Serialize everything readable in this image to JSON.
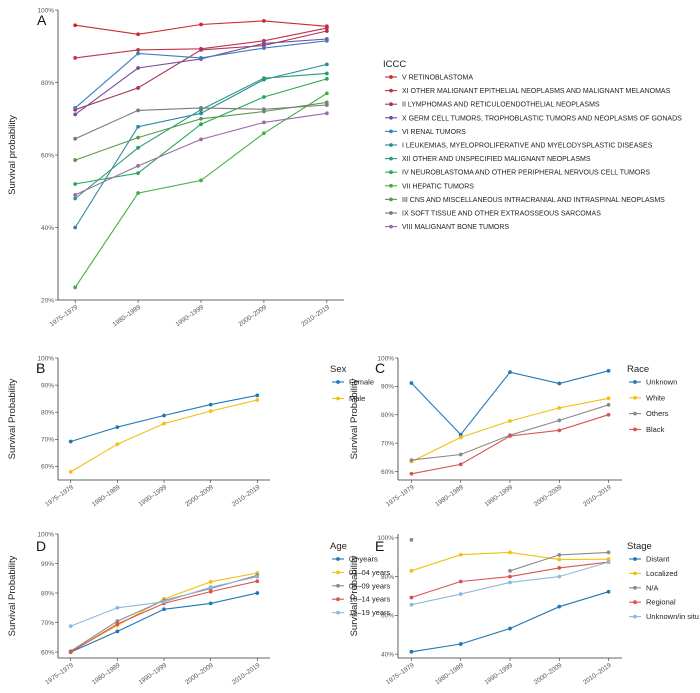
{
  "chart_data": [
    {
      "id": "A",
      "type": "line",
      "panel_label": "A",
      "ylabel": "Survival probability",
      "legend_title": "ICCC",
      "categories": [
        "1975–1979",
        "1980–1989",
        "1990–1999",
        "2000–2009",
        "2010–2019"
      ],
      "y_ticks": [
        "20%",
        "40%",
        "60%",
        "80%",
        "100%"
      ],
      "ylim": [
        20,
        100
      ],
      "series": [
        {
          "name": "V RETINOBLASTOMA",
          "color": "#cc2a2a",
          "values": [
            95.8,
            93.3,
            96.0,
            97.0,
            95.5
          ]
        },
        {
          "name": "XI OTHER MALIGNANT EPITHELIAL NEOPLASMS AND MALIGNANT MELANOMAS",
          "color": "#c2334a",
          "values": [
            86.8,
            89.0,
            89.3,
            91.5,
            95.0
          ]
        },
        {
          "name": "II LYMPHOMAS AND RETICULOENDOTHELIAL NEOPLASMS",
          "color": "#a8325a",
          "values": [
            72.5,
            78.5,
            89.0,
            90.2,
            94.2
          ]
        },
        {
          "name": "X GERM CELL TUMORS, TROPHOBLASTIC TUMORS AND NEOPLASMS OF GONADS",
          "color": "#7a4a9a",
          "values": [
            71.2,
            84.0,
            86.5,
            90.8,
            92.0
          ]
        },
        {
          "name": "VI RENAL TUMORS",
          "color": "#3a7fc0",
          "values": [
            73.0,
            88.0,
            86.8,
            89.5,
            91.5
          ]
        },
        {
          "name": "I LEUKEMIAS, MYELOPROLIFERATIVE AND MYELODYSPLASTIC DISEASES",
          "color": "#2a8a9a",
          "values": [
            40.0,
            67.8,
            71.5,
            80.8,
            85.0
          ]
        },
        {
          "name": "XII OTHER AND UNSPECIFIED MALIGNANT NEOPLASMS",
          "color": "#2a9a7a",
          "values": [
            48.0,
            62.0,
            72.5,
            81.2,
            82.5
          ]
        },
        {
          "name": "IV NEUROBLASTOMA AND OTHER PERIPHERAL NERVOUS CELL TUMORS",
          "color": "#2aa85a",
          "values": [
            52.0,
            55.0,
            68.5,
            76.0,
            81.0
          ]
        },
        {
          "name": "VII HEPATIC TUMORS",
          "color": "#44b044",
          "values": [
            23.5,
            49.5,
            53.0,
            66.0,
            77.0
          ]
        },
        {
          "name": "III CNS AND MISCELLANEOUS INTRACRANIAL AND INTRASPINAL NEOPLASMS",
          "color": "#5a9a4a",
          "values": [
            58.6,
            64.8,
            70.0,
            72.0,
            74.5
          ]
        },
        {
          "name": "IX SOFT TISSUE AND OTHER EXTRAOSSEOUS SARCOMAS",
          "color": "#7a7a7a",
          "values": [
            64.5,
            72.3,
            73.0,
            72.6,
            73.8
          ]
        },
        {
          "name": "VIII MALIGNANT BONE TUMORS",
          "color": "#9a6aaa",
          "values": [
            49.0,
            57.0,
            64.3,
            69.0,
            71.5
          ]
        }
      ]
    },
    {
      "id": "B",
      "type": "line",
      "panel_label": "B",
      "ylabel": "Survival Probability",
      "legend_title": "Sex",
      "categories": [
        "1975–1979",
        "1980–1989",
        "1990–1999",
        "2000–2009",
        "2010–2019"
      ],
      "y_ticks": [
        "60%",
        "70%",
        "80%",
        "90%",
        "100%"
      ],
      "ylim": [
        55,
        100
      ],
      "series": [
        {
          "name": "Female",
          "color": "#1f77b4",
          "values": [
            69.2,
            74.5,
            78.8,
            82.8,
            86.2
          ]
        },
        {
          "name": "Male",
          "color": "#f2c010",
          "values": [
            58.0,
            68.2,
            75.8,
            80.4,
            84.5
          ]
        }
      ]
    },
    {
      "id": "C",
      "type": "line",
      "panel_label": "C",
      "ylabel": "Survival Probability",
      "legend_title": "Race",
      "categories": [
        "1975–1979",
        "1980–1989",
        "1990–1999",
        "2000–2009",
        "2010–2019"
      ],
      "y_ticks": [
        "60%",
        "70%",
        "80%",
        "90%",
        "100%"
      ],
      "ylim": [
        57,
        100
      ],
      "series": [
        {
          "name": "Unknown",
          "color": "#1f77b4",
          "values": [
            91.2,
            73.0,
            95.0,
            91.0,
            95.5
          ]
        },
        {
          "name": "White",
          "color": "#f2c010",
          "values": [
            63.5,
            72.0,
            77.8,
            82.4,
            85.8
          ]
        },
        {
          "name": "Others",
          "color": "#8a8a8a",
          "values": [
            64.0,
            66.0,
            72.8,
            78.0,
            83.5
          ]
        },
        {
          "name": "Black",
          "color": "#d9534f",
          "values": [
            59.2,
            62.5,
            72.5,
            74.5,
            80.0
          ]
        }
      ]
    },
    {
      "id": "D",
      "type": "line",
      "panel_label": "D",
      "ylabel": "Survival Probability",
      "legend_title": "Age",
      "categories": [
        "1975–1979",
        "1980–1989",
        "1990–1999",
        "2000–2009",
        "2010–2019"
      ],
      "y_ticks": [
        "60%",
        "70%",
        "80%",
        "90%",
        "100%"
      ],
      "ylim": [
        58,
        100
      ],
      "series": [
        {
          "name": "00 years",
          "color": "#1f77b4",
          "values": [
            60.0,
            67.0,
            74.5,
            76.5,
            80.0
          ]
        },
        {
          "name": "01–04 years",
          "color": "#f2c010",
          "values": [
            60.2,
            69.0,
            78.0,
            83.8,
            86.8
          ]
        },
        {
          "name": "05–09 years",
          "color": "#8a8a8a",
          "values": [
            60.3,
            70.5,
            77.5,
            81.5,
            86.0
          ]
        },
        {
          "name": "10–14 years",
          "color": "#d9534f",
          "values": [
            60.0,
            69.5,
            76.5,
            80.5,
            84.0
          ]
        },
        {
          "name": "15–19 years",
          "color": "#8fb8dc",
          "values": [
            68.8,
            75.0,
            77.0,
            82.0,
            85.5
          ]
        }
      ]
    },
    {
      "id": "E",
      "type": "line",
      "panel_label": "E",
      "ylabel": "Survival Probability",
      "legend_title": "Stage",
      "categories": [
        "1975–1979",
        "1980–1989",
        "1990–1999",
        "2000–2009",
        "2010–2019"
      ],
      "y_ticks": [
        "40%",
        "60%",
        "80%",
        "100%"
      ],
      "ylim": [
        38,
        102
      ],
      "series": [
        {
          "name": "Distant",
          "color": "#1f77b4",
          "values": [
            41.2,
            45.2,
            53.2,
            64.5,
            72.2
          ]
        },
        {
          "name": "Localized",
          "color": "#f2c010",
          "values": [
            83.0,
            91.3,
            92.5,
            88.8,
            89.0
          ]
        },
        {
          "name": "N/A",
          "color": "#8a8a8a",
          "values": [
            99.0,
            null,
            83.0,
            91.2,
            92.5
          ]
        },
        {
          "name": "Regional",
          "color": "#d9534f",
          "values": [
            69.2,
            77.5,
            80.0,
            84.5,
            87.5
          ]
        },
        {
          "name": "Unknown/in situ",
          "color": "#8fb8dc",
          "values": [
            65.5,
            71.0,
            77.0,
            80.0,
            87.5
          ]
        }
      ]
    }
  ]
}
